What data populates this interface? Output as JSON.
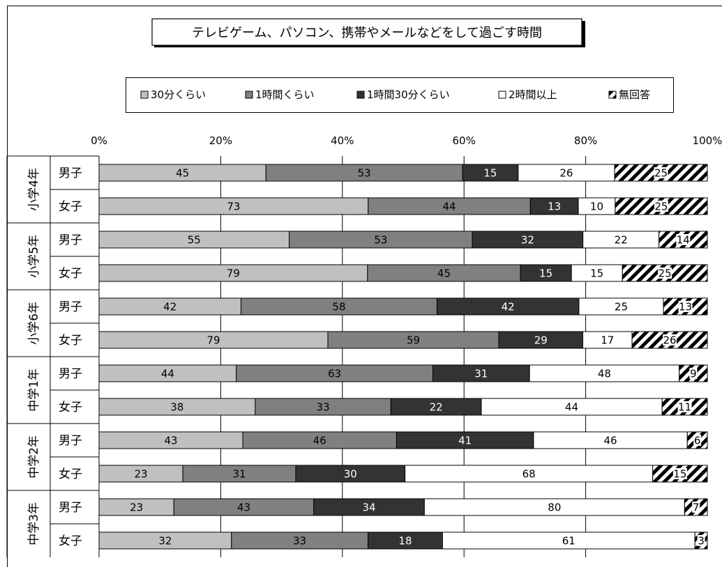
{
  "chart_data": {
    "type": "bar",
    "orientation": "horizontal",
    "stacked": "percent",
    "title": "テレビゲーム、パソコン、携帯やメールなどをして過ごす時間",
    "x_ticks": [
      "0%",
      "20%",
      "40%",
      "60%",
      "80%",
      "100%"
    ],
    "xlim": [
      0,
      100
    ],
    "grid": true,
    "legend_position": "top",
    "groups": [
      {
        "label": "小学4年",
        "rows": [
          "男子",
          "女子"
        ]
      },
      {
        "label": "小学5年",
        "rows": [
          "男子",
          "女子"
        ]
      },
      {
        "label": "小学6年",
        "rows": [
          "男子",
          "女子"
        ]
      },
      {
        "label": "中学1年",
        "rows": [
          "男子",
          "女子"
        ]
      },
      {
        "label": "中学2年",
        "rows": [
          "男子",
          "女子"
        ]
      },
      {
        "label": "中学3年",
        "rows": [
          "男子",
          "女子"
        ]
      }
    ],
    "series": [
      {
        "name": "30分くらい",
        "color": "#c0c0c0",
        "values": [
          45,
          73,
          55,
          79,
          42,
          79,
          44,
          38,
          43,
          23,
          23,
          32
        ]
      },
      {
        "name": "1時間くらい",
        "color": "#808080",
        "values": [
          53,
          44,
          53,
          45,
          58,
          59,
          63,
          33,
          46,
          31,
          43,
          33
        ]
      },
      {
        "name": "1時間30分くらい",
        "color": "#333333",
        "values": [
          15,
          13,
          32,
          15,
          42,
          29,
          31,
          22,
          41,
          30,
          34,
          18
        ]
      },
      {
        "name": "2時間以上",
        "color": "#ffffff",
        "values": [
          26,
          10,
          22,
          15,
          25,
          17,
          48,
          44,
          46,
          68,
          80,
          61
        ]
      },
      {
        "name": "無回答",
        "color": "hatch",
        "values": [
          25,
          25,
          14,
          25,
          13,
          26,
          9,
          11,
          6,
          15,
          7,
          3
        ]
      }
    ]
  }
}
